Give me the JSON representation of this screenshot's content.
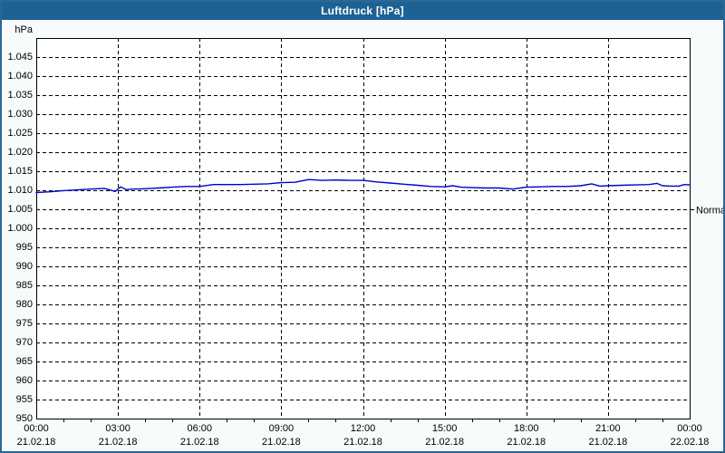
{
  "window": {
    "title": "Luftdruck [hPa]"
  },
  "colors": {
    "titlebar_bg": "#1e6295",
    "titlebar_text": "#ffffff",
    "window_border": "#2a6896",
    "content_bg": "#f7fbfc",
    "plot_bg": "#ffffff",
    "grid": "#000000",
    "axis": "#000000",
    "line": "#0000cc",
    "label_text": "#000000"
  },
  "y_axis": {
    "unit_label": "hPa",
    "tick_labels": [
      "1.045",
      "1.040",
      "1.035",
      "1.030",
      "1.025",
      "1.020",
      "1.015",
      "1.010",
      "1.005",
      "1.000",
      "995",
      "990",
      "985",
      "980",
      "975",
      "970",
      "965",
      "960",
      "955",
      "950"
    ],
    "tick_values": [
      1045,
      1040,
      1035,
      1030,
      1025,
      1020,
      1015,
      1010,
      1005,
      1000,
      995,
      990,
      985,
      980,
      975,
      970,
      965,
      960,
      955,
      950
    ]
  },
  "x_axis": {
    "ticks": [
      {
        "hour": 0,
        "time": "00:00",
        "date": "21.02.18"
      },
      {
        "hour": 3,
        "time": "03:00",
        "date": "21.02.18"
      },
      {
        "hour": 6,
        "time": "06:00",
        "date": "21.02.18"
      },
      {
        "hour": 9,
        "time": "09:00",
        "date": "21.02.18"
      },
      {
        "hour": 12,
        "time": "12:00",
        "date": "21.02.18"
      },
      {
        "hour": 15,
        "time": "15:00",
        "date": "21.02.18"
      },
      {
        "hour": 18,
        "time": "18:00",
        "date": "21.02.18"
      },
      {
        "hour": 21,
        "time": "21:00",
        "date": "21.02.18"
      },
      {
        "hour": 24,
        "time": "00:00",
        "date": "22.02.18"
      }
    ],
    "minor_tick_every_hours": 1
  },
  "normal_marker": {
    "label": "Normal",
    "value": 1005
  },
  "chart_data": {
    "type": "line",
    "title": "Luftdruck [hPa]",
    "xlabel": "",
    "ylabel": "hPa",
    "ylim": [
      950,
      1050
    ],
    "xlim_hours": [
      0,
      24
    ],
    "grid": "dashed",
    "legend_position": "none",
    "annotations": [
      {
        "label": "Normal",
        "value": 1005
      }
    ],
    "series": [
      {
        "name": "Luftdruck",
        "color": "#0000cc",
        "x_hours": [
          0,
          0.5,
          1,
          1.5,
          2,
          2.5,
          2.9,
          3.1,
          3.3,
          3.6,
          4,
          4.5,
          5,
          5.5,
          6,
          6.5,
          7,
          7.5,
          8,
          8.5,
          9,
          9.5,
          10,
          10.5,
          11,
          11.5,
          12,
          12.5,
          13,
          13.5,
          14,
          14.5,
          15,
          15.3,
          15.6,
          16,
          16.5,
          17,
          17.5,
          18,
          18.5,
          19,
          19.5,
          20,
          20.4,
          20.7,
          21,
          21.5,
          22,
          22.5,
          22.8,
          23,
          23.3,
          23.6,
          23.8,
          24
        ],
        "values": [
          1009.4,
          1009.6,
          1009.9,
          1010.1,
          1010.3,
          1010.5,
          1009.7,
          1010.9,
          1010.2,
          1010.3,
          1010.4,
          1010.6,
          1010.8,
          1011.0,
          1011.0,
          1011.5,
          1011.5,
          1011.5,
          1011.6,
          1011.7,
          1012.0,
          1012.1,
          1012.8,
          1012.6,
          1012.7,
          1012.6,
          1012.6,
          1012.2,
          1011.9,
          1011.6,
          1011.3,
          1011.0,
          1010.9,
          1011.2,
          1010.8,
          1010.7,
          1010.6,
          1010.6,
          1010.3,
          1010.8,
          1010.9,
          1011.0,
          1011.0,
          1011.2,
          1011.7,
          1011.1,
          1011.2,
          1011.3,
          1011.4,
          1011.5,
          1011.8,
          1011.2,
          1011.1,
          1011.1,
          1011.5,
          1011.4
        ]
      }
    ]
  }
}
